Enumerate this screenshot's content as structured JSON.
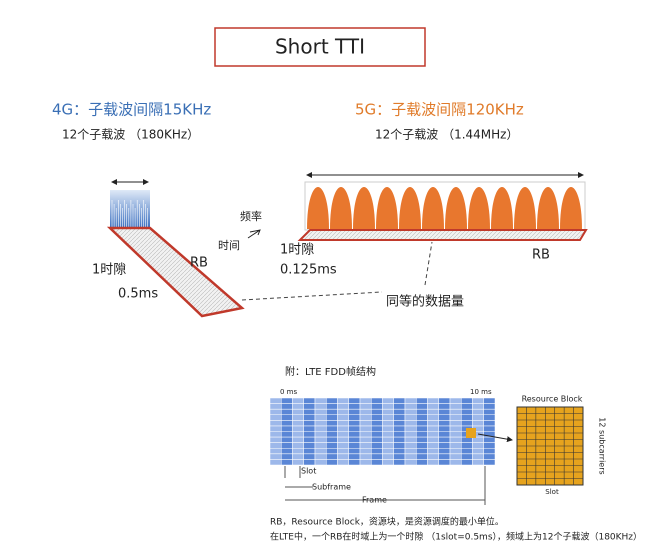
{
  "title": "Short TTI",
  "lte": {
    "heading": "4G：子载波间隔15KHz",
    "subcarriers": "12个子载波 （180KHz）",
    "slot": "1时隙",
    "duration": "0.5ms",
    "rb": "RB"
  },
  "nr": {
    "heading": "5G：子载波间隔120KHz",
    "subcarriers": "12个子载波 （1.44MHz）",
    "slot": "1时隙",
    "duration": "0.125ms",
    "rb": "RB"
  },
  "axes": {
    "frequency": "频率",
    "time": "时间"
  },
  "equal_data": "同等的数据量",
  "appendix": {
    "title": "附：LTE FDD帧结构",
    "start": "0 ms",
    "end": "10 ms",
    "slot": "Slot",
    "subframe": "Subframe",
    "frame": "Frame",
    "rb_title": "Resource Block",
    "rb_side": "12 subcarriers",
    "rb_bottom": "Slot",
    "notes": [
      "RB，Resource Block，资源块，是资源调度的最小单位。",
      "在LTE中，一个RB在时域上为一个时隙 （1slot=0.5ms），频域上为12个子载波（180KHz）"
    ]
  }
}
